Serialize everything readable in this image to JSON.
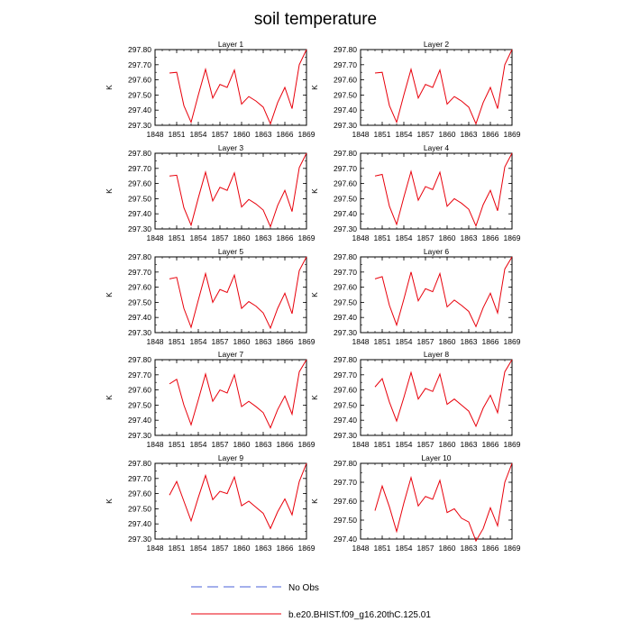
{
  "chart_data": {
    "type": "line",
    "title": "soil temperature",
    "x": [
      1850,
      1851,
      1852,
      1853,
      1854,
      1855,
      1856,
      1857,
      1858,
      1859,
      1860,
      1861,
      1862,
      1863,
      1864,
      1865,
      1866,
      1867,
      1868,
      1869
    ],
    "xlim": [
      1848,
      1869
    ],
    "xticks": [
      "1848",
      "1851",
      "1854",
      "1857",
      "1860",
      "1863",
      "1866",
      "1869"
    ],
    "ylabel": "K",
    "panels": [
      {
        "title": "Layer 1",
        "ylim": [
          297.3,
          297.8
        ],
        "yticks": [
          "297.30",
          "297.40",
          "297.50",
          "297.60",
          "297.70",
          "297.80"
        ],
        "values": [
          297.645,
          297.65,
          297.43,
          297.32,
          297.5,
          297.67,
          297.48,
          297.57,
          297.55,
          297.665,
          297.44,
          297.49,
          297.46,
          297.42,
          297.31,
          297.45,
          297.55,
          297.41,
          297.7,
          297.8
        ]
      },
      {
        "title": "Layer 2",
        "ylim": [
          297.3,
          297.8
        ],
        "yticks": [
          "297.30",
          "297.40",
          "297.50",
          "297.60",
          "297.70",
          "297.80"
        ],
        "values": [
          297.645,
          297.65,
          297.43,
          297.32,
          297.5,
          297.67,
          297.48,
          297.57,
          297.55,
          297.665,
          297.44,
          297.49,
          297.46,
          297.42,
          297.31,
          297.45,
          297.55,
          297.41,
          297.7,
          297.8
        ]
      },
      {
        "title": "Layer 3",
        "ylim": [
          297.3,
          297.8
        ],
        "yticks": [
          "297.30",
          "297.40",
          "297.50",
          "297.60",
          "297.70",
          "297.80"
        ],
        "values": [
          297.65,
          297.655,
          297.44,
          297.325,
          297.505,
          297.675,
          297.485,
          297.575,
          297.555,
          297.67,
          297.445,
          297.495,
          297.465,
          297.425,
          297.315,
          297.455,
          297.555,
          297.415,
          297.705,
          297.8
        ]
      },
      {
        "title": "Layer 4",
        "ylim": [
          297.3,
          297.8
        ],
        "yticks": [
          "297.30",
          "297.40",
          "297.50",
          "297.60",
          "297.70",
          "297.80"
        ],
        "values": [
          297.65,
          297.66,
          297.45,
          297.33,
          297.51,
          297.68,
          297.49,
          297.58,
          297.56,
          297.675,
          297.45,
          297.5,
          297.47,
          297.43,
          297.32,
          297.46,
          297.555,
          297.42,
          297.71,
          297.8
        ]
      },
      {
        "title": "Layer 5",
        "ylim": [
          297.3,
          297.8
        ],
        "yticks": [
          "297.30",
          "297.40",
          "297.50",
          "297.60",
          "297.70",
          "297.80"
        ],
        "values": [
          297.655,
          297.665,
          297.46,
          297.335,
          297.515,
          297.69,
          297.5,
          297.585,
          297.565,
          297.68,
          297.46,
          297.505,
          297.475,
          297.43,
          297.33,
          297.46,
          297.56,
          297.425,
          297.71,
          297.8
        ]
      },
      {
        "title": "Layer 6",
        "ylim": [
          297.3,
          297.8
        ],
        "yticks": [
          "297.30",
          "297.40",
          "297.50",
          "297.60",
          "297.70",
          "297.80"
        ],
        "values": [
          297.655,
          297.67,
          297.48,
          297.35,
          297.52,
          297.7,
          297.51,
          297.59,
          297.57,
          297.69,
          297.47,
          297.515,
          297.48,
          297.44,
          297.34,
          297.465,
          297.56,
          297.43,
          297.72,
          297.8
        ]
      },
      {
        "title": "Layer 7",
        "ylim": [
          297.3,
          297.8
        ],
        "yticks": [
          "297.30",
          "297.40",
          "297.50",
          "297.60",
          "297.70",
          "297.80"
        ],
        "values": [
          297.64,
          297.67,
          297.5,
          297.37,
          297.535,
          297.705,
          297.525,
          297.6,
          297.58,
          297.7,
          297.49,
          297.525,
          297.49,
          297.45,
          297.35,
          297.47,
          297.56,
          297.44,
          297.72,
          297.8
        ]
      },
      {
        "title": "Layer 8",
        "ylim": [
          297.3,
          297.8
        ],
        "yticks": [
          "297.30",
          "297.40",
          "297.50",
          "297.60",
          "297.70",
          "297.80"
        ],
        "values": [
          297.62,
          297.675,
          297.52,
          297.395,
          297.55,
          297.715,
          297.54,
          297.61,
          297.59,
          297.705,
          297.505,
          297.54,
          297.5,
          297.46,
          297.36,
          297.48,
          297.565,
          297.45,
          297.72,
          297.8
        ]
      },
      {
        "title": "Layer 9",
        "ylim": [
          297.3,
          297.8
        ],
        "yticks": [
          "297.30",
          "297.40",
          "297.50",
          "297.60",
          "297.70",
          "297.80"
        ],
        "values": [
          297.59,
          297.68,
          297.55,
          297.42,
          297.575,
          297.72,
          297.56,
          297.615,
          297.6,
          297.71,
          297.52,
          297.55,
          297.51,
          297.47,
          297.37,
          297.48,
          297.565,
          297.46,
          297.68,
          297.8
        ]
      },
      {
        "title": "Layer 10",
        "ylim": [
          297.4,
          297.8
        ],
        "yticks": [
          "297.40",
          "297.50",
          "297.60",
          "297.70",
          "297.80"
        ],
        "values": [
          297.55,
          297.68,
          297.57,
          297.44,
          297.59,
          297.725,
          297.575,
          297.625,
          297.61,
          297.71,
          297.54,
          297.56,
          297.51,
          297.49,
          297.39,
          297.455,
          297.565,
          297.47,
          297.7,
          297.8
        ]
      }
    ],
    "legend": [
      {
        "label": "No Obs",
        "style": "dashed",
        "color": "#4a5fd8"
      },
      {
        "label": "b.e20.BHIST.f09_g16.20thC.125.01",
        "style": "solid",
        "color": "#e8000b"
      }
    ],
    "line_color": "#e8000b"
  }
}
